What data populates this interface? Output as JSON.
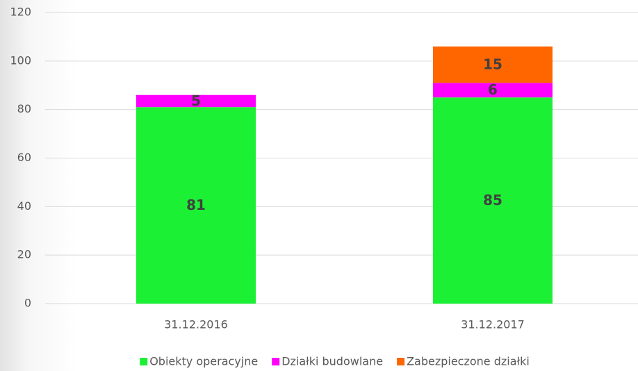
{
  "chart_data": {
    "type": "stacked_bar",
    "categories": [
      "31.12.2016",
      "31.12.2017"
    ],
    "series": [
      {
        "name": "Obiekty operacyjne",
        "color": "#1cf034",
        "values": [
          81,
          85
        ]
      },
      {
        "name": "Działki budowlane",
        "color": "#ff00ff",
        "values": [
          5,
          6
        ]
      },
      {
        "name": "Zabezpieczone działki",
        "color": "#ff6600",
        "values": [
          null,
          15
        ]
      }
    ],
    "ylim": [
      0,
      120
    ],
    "yticks": [
      0,
      20,
      40,
      60,
      80,
      100,
      120
    ],
    "grid": true,
    "legend": "bottom"
  }
}
